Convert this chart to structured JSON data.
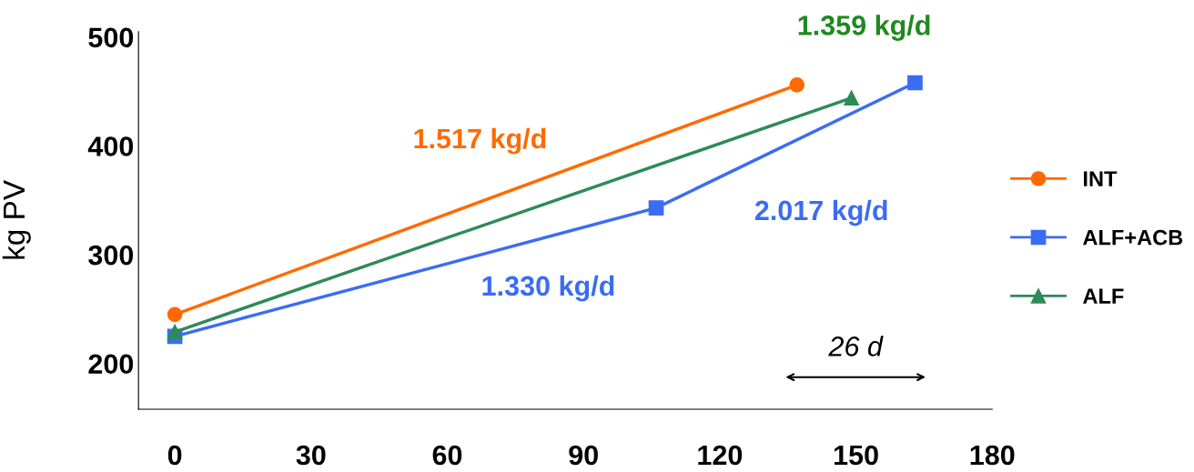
{
  "chart_data": {
    "type": "line",
    "ylabel": "kg PV",
    "xlim": [
      -8,
      180
    ],
    "xticks": [
      0,
      30,
      60,
      90,
      120,
      150,
      180
    ],
    "ylim": [
      158,
      505
    ],
    "yticks": [
      200,
      300,
      400,
      500
    ],
    "grid": false,
    "legend": "right",
    "line_style": "solid",
    "series": [
      {
        "name": "INT",
        "color": "#ff6a00",
        "marker": "circle",
        "x": [
          0,
          137
        ],
        "values": [
          245,
          456
        ]
      },
      {
        "name": "ALF+ACB",
        "color": "#3a6cf4",
        "marker": "square",
        "x": [
          0,
          106,
          163
        ],
        "values": [
          225,
          343,
          458
        ]
      },
      {
        "name": "ALF",
        "color": "#2e8b57",
        "marker": "triangle",
        "x": [
          0,
          149
        ],
        "values": [
          229,
          444
        ]
      }
    ],
    "annotations": [
      "1.517 kg/d",
      "1.330 kg/d",
      "2.017 kg/d",
      "1.359 kg/d",
      "26 d"
    ]
  }
}
